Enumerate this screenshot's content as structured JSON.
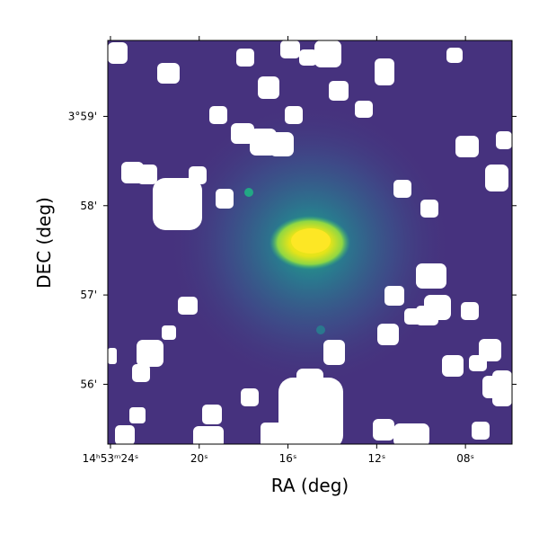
{
  "chart_data": {
    "type": "image",
    "xlabel": "RA (deg)",
    "ylabel": "DEC (deg)",
    "xlim": [
      24.12,
      5.9
    ],
    "ylim": [
      55.33,
      59.85
    ],
    "xticks": [
      {
        "value": 24,
        "label": "14ʰ53ᵐ24ˢ"
      },
      {
        "value": 20,
        "label": "20ˢ"
      },
      {
        "value": 16,
        "label": "16ˢ"
      },
      {
        "value": 12,
        "label": "12ˢ"
      },
      {
        "value": 8,
        "label": "08ˢ"
      }
    ],
    "yticks": [
      {
        "value": 59,
        "label": "3°59'"
      },
      {
        "value": 58,
        "label": "58'"
      },
      {
        "value": 57,
        "label": "57'"
      },
      {
        "value": 56,
        "label": "56'"
      }
    ]
  }
}
